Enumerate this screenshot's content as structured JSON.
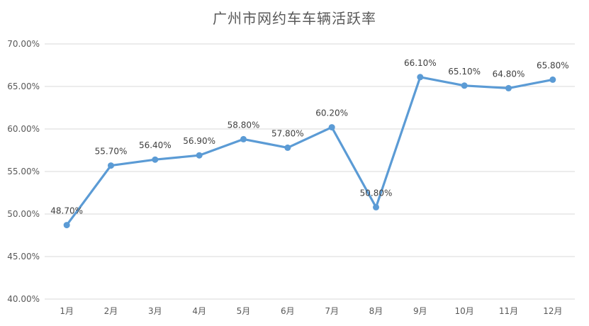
{
  "chart_data": {
    "type": "line",
    "title": "广州市网约车车辆活跃率",
    "categories": [
      "1月",
      "2月",
      "3月",
      "4月",
      "5月",
      "6月",
      "7月",
      "8月",
      "9月",
      "10月",
      "11月",
      "12月"
    ],
    "series": [
      {
        "values": [
          48.7,
          55.7,
          56.4,
          56.9,
          58.8,
          57.8,
          60.2,
          50.8,
          66.1,
          65.1,
          64.8,
          65.8
        ],
        "labels": [
          "48.70%",
          "55.70%",
          "56.40%",
          "56.90%",
          "58.80%",
          "57.80%",
          "60.20%",
          "50.80%",
          "66.10%",
          "65.10%",
          "64.80%",
          "65.80%"
        ],
        "color": "#5b9bd5"
      }
    ],
    "yticks": [
      "40.00%",
      "45.00%",
      "50.00%",
      "55.00%",
      "60.00%",
      "65.00%",
      "70.00%"
    ],
    "ylim": [
      40,
      70
    ],
    "grid": true,
    "legend": "none",
    "colors": {
      "line": "#5b9bd5",
      "grid": "#d9d9d9",
      "text": "#595959"
    }
  }
}
